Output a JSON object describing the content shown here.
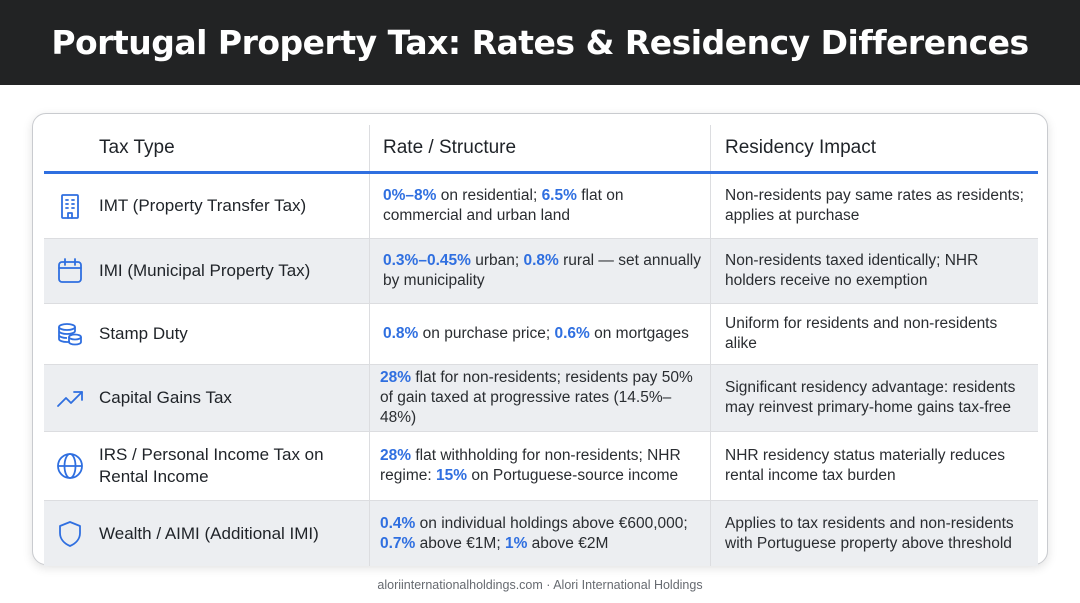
{
  "header": {
    "title": "Portugal Property Tax: Rates & Residency Differences"
  },
  "table": {
    "columns": [
      "Tax Type",
      "Rate / Structure",
      "Residency Impact"
    ],
    "rows": [
      {
        "icon": "building-icon",
        "tax_type": "IMT (Property Transfer Tax)",
        "rate": [
          {
            "t": "0%–8%",
            "hl": true
          },
          {
            "t": " on residential; ",
            "hl": false
          },
          {
            "t": "6.5%",
            "hl": true
          },
          {
            "t": " flat on commercial and urban land",
            "hl": false
          }
        ],
        "residency": "Non-residents pay same rates as residents; applies at purchase"
      },
      {
        "icon": "calendar-icon",
        "tax_type": "IMI (Municipal Property Tax)",
        "rate": [
          {
            "t": "0.3%–0.45%",
            "hl": true
          },
          {
            "t": " urban; ",
            "hl": false
          },
          {
            "t": "0.8%",
            "hl": true
          },
          {
            "t": " rural — set annually by municipality",
            "hl": false
          }
        ],
        "residency": "Non-residents taxed identically; NHR holders receive no exemption"
      },
      {
        "icon": "coins-icon",
        "tax_type": "Stamp Duty",
        "rate": [
          {
            "t": "0.8%",
            "hl": true
          },
          {
            "t": " on purchase price; ",
            "hl": false
          },
          {
            "t": "0.6%",
            "hl": true
          },
          {
            "t": " on mortgages",
            "hl": false
          }
        ],
        "residency": "Uniform for residents and non-residents alike"
      },
      {
        "icon": "trending-up-icon",
        "tax_type": "Capital Gains Tax",
        "rate": [
          {
            "t": "28%",
            "hl": true
          },
          {
            "t": " flat for non-residents; residents pay 50% of gain taxed at progressive rates (14.5%–48%)",
            "hl": false
          }
        ],
        "residency": "Significant residency advantage: residents may reinvest primary-home gains tax-free"
      },
      {
        "icon": "globe-icon",
        "tax_type": "IRS / Personal Income Tax on Rental Income",
        "rate": [
          {
            "t": "28%",
            "hl": true
          },
          {
            "t": " flat withholding for non-residents; NHR regime: ",
            "hl": false
          },
          {
            "t": "15%",
            "hl": true
          },
          {
            "t": " on Portuguese-source income",
            "hl": false
          }
        ],
        "residency": "NHR residency status materially reduces rental income tax burden"
      },
      {
        "icon": "shield-icon",
        "tax_type": "Wealth / AIMI (Additional IMI)",
        "rate": [
          {
            "t": "0.4%",
            "hl": true
          },
          {
            "t": " on individual holdings above €600,000; ",
            "hl": false
          },
          {
            "t": "0.7%",
            "hl": true
          },
          {
            "t": " above €1M; ",
            "hl": false
          },
          {
            "t": "1%",
            "hl": true
          },
          {
            "t": " above €2M",
            "hl": false
          }
        ],
        "residency": "Applies to tax residents and non-residents with Portuguese property above threshold"
      }
    ]
  },
  "footer": {
    "text": "aloriinternationalholdings.com · Alori International Holdings"
  },
  "colors": {
    "accent": "#2f6fe0",
    "header_bg": "#222324",
    "alt_row": "#eceef1"
  }
}
